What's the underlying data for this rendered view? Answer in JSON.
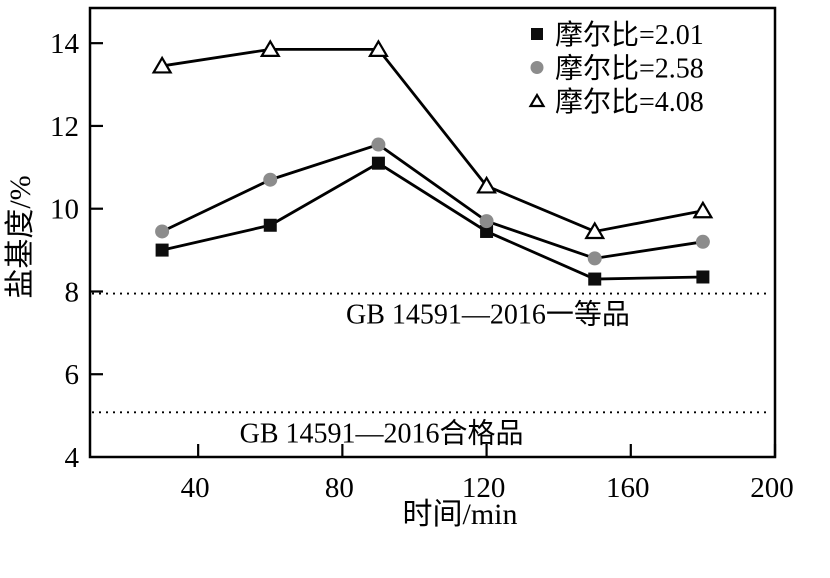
{
  "figure": {
    "background_color": "#ffffff",
    "frame_color": "#000000"
  },
  "chart_data": {
    "type": "line",
    "title": "",
    "xlabel": "时间/min",
    "ylabel": "盐基度/%",
    "x": [
      30,
      60,
      90,
      120,
      150,
      180
    ],
    "xlim": [
      10,
      200
    ],
    "ylim": [
      4,
      14.85
    ],
    "xticks": [
      40,
      80,
      120,
      160,
      200
    ],
    "yticks": [
      4,
      6,
      8,
      10,
      12,
      14
    ],
    "grid": false,
    "legend_position": "top-right-inside",
    "line_color": "#000000",
    "series": [
      {
        "name": "摩尔比=2.01",
        "marker": "filled-square",
        "marker_color": "#0d0d0d",
        "values": [
          9.0,
          9.6,
          11.1,
          9.45,
          8.3,
          8.35
        ]
      },
      {
        "name": "摩尔比=2.58",
        "marker": "filled-circle",
        "marker_color": "#8c8c8c",
        "values": [
          9.45,
          10.7,
          11.55,
          9.7,
          8.8,
          9.2
        ]
      },
      {
        "name": "摩尔比=4.08",
        "marker": "open-triangle",
        "marker_color": "#ffffff",
        "values": [
          13.45,
          13.85,
          13.85,
          10.55,
          9.45,
          9.95
        ]
      }
    ],
    "reference_lines": [
      {
        "y": 7.95,
        "style": "dotted",
        "label": "GB 14591—2016一等品",
        "label_x": 81,
        "color": "#000000"
      },
      {
        "y": 5.08,
        "style": "dotted",
        "label": "GB 14591—2016合格品",
        "label_x": 51.5,
        "color": "#000000"
      }
    ]
  }
}
